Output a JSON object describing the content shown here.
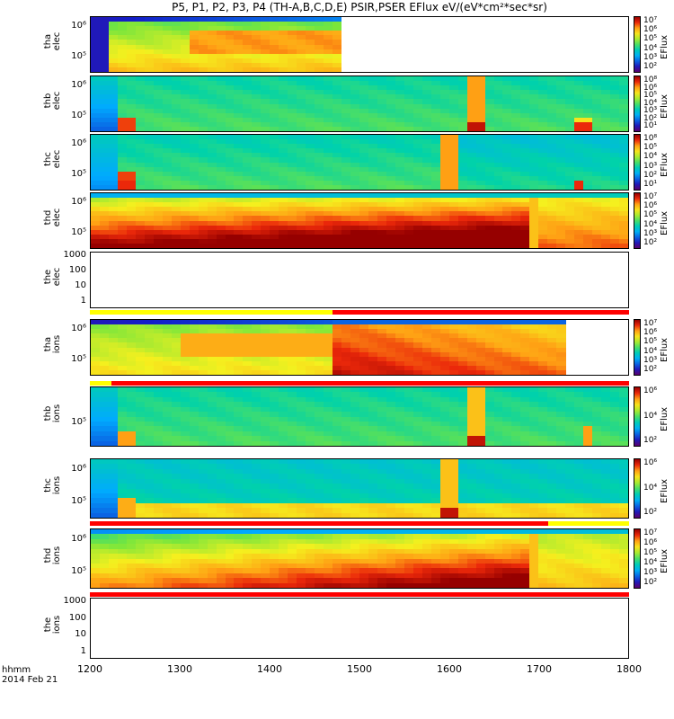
{
  "title": "P5, P1, P2, P3, P4 (TH-A,B,C,D,E) PSIR,PSER EFlux eV/(eV*cm²*sec*sr)",
  "footer": {
    "line1": "hhmm",
    "line2": "2014 Feb 21"
  },
  "colorbar_label": "EFlux",
  "chart_data": {
    "type": "heatmap",
    "x_ticks": [
      "1200",
      "1300",
      "1400",
      "1500",
      "1600",
      "1700",
      "1800"
    ],
    "x_range": [
      1200,
      1800
    ],
    "panels": [
      {
        "probe": "tha",
        "species": "elec",
        "yticks": [
          "10⁶",
          "10⁵"
        ],
        "colorbar_ticks": [
          "10⁷",
          "10⁶",
          "10⁵",
          "10⁴",
          "10³",
          "10²"
        ],
        "data_end": 1475
      },
      {
        "probe": "thb",
        "species": "elec",
        "yticks": [
          "10⁶",
          "10⁵"
        ],
        "colorbar_ticks": [
          "10⁸",
          "10⁶",
          "10⁵",
          "10⁴",
          "10³",
          "10²",
          "10¹"
        ]
      },
      {
        "probe": "thc",
        "species": "elec",
        "yticks": [
          "10⁶",
          "10⁵"
        ],
        "colorbar_ticks": [
          "10⁸",
          "10⁵",
          "10⁴",
          "10³",
          "10²",
          "10¹"
        ]
      },
      {
        "probe": "thd",
        "species": "elec",
        "yticks": [
          "10⁶",
          "10⁵"
        ],
        "colorbar_ticks": [
          "10⁷",
          "10⁶",
          "10⁵",
          "10⁴",
          "10³",
          "10²"
        ]
      },
      {
        "probe": "the",
        "species": "elec",
        "yticks": [
          "1000",
          "100",
          "10",
          "1"
        ],
        "colorbar_ticks": []
      },
      {
        "probe": "tha",
        "species": "ions",
        "yticks": [
          "10⁶",
          "10⁵"
        ],
        "colorbar_ticks": [
          "10⁷",
          "10⁶",
          "10⁵",
          "10⁴",
          "10³",
          "10²"
        ],
        "data_end": 1730
      },
      {
        "probe": "thb",
        "species": "ions",
        "yticks": [
          "10⁵"
        ],
        "colorbar_ticks": [
          "10⁶",
          "10⁴",
          "10²"
        ]
      },
      {
        "probe": "thc",
        "species": "ions",
        "yticks": [
          "10⁶",
          "10⁵"
        ],
        "colorbar_ticks": [
          "10⁶",
          "10⁴",
          "10²"
        ]
      },
      {
        "probe": "thd",
        "species": "ions",
        "yticks": [
          "10⁶",
          "10⁵"
        ],
        "colorbar_ticks": [
          "10⁷",
          "10⁶",
          "10⁵",
          "10⁴",
          "10³",
          "10²"
        ]
      },
      {
        "probe": "the",
        "species": "ions",
        "yticks": [
          "1000",
          "100",
          "10",
          "1"
        ],
        "colorbar_ticks": []
      }
    ]
  }
}
